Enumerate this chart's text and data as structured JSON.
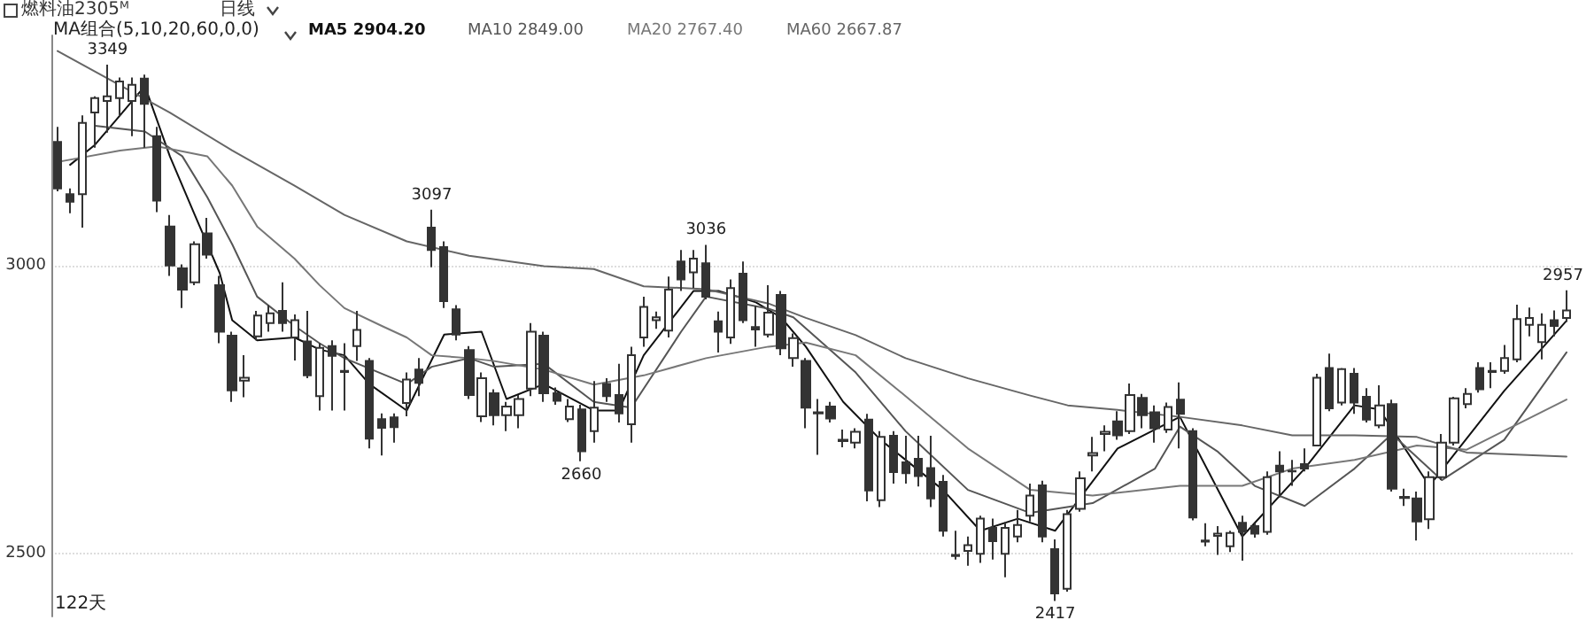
{
  "chart_data": {
    "type": "candlestick",
    "title": "燃料油2305ᴹ",
    "subtitle": "日线",
    "annotations": [
      "MA组合(5,10,20,60,0,0)",
      "122天",
      {
        "text": "3349",
        "y": 3349
      },
      {
        "text": "3097",
        "y": 3097
      },
      {
        "text": "2660",
        "y": 2660
      },
      {
        "text": "3036",
        "y": 3036
      },
      {
        "text": "2417",
        "y": 2417
      },
      {
        "text": "2957",
        "y": 2957
      }
    ],
    "categories": [
      null,
      null,
      null,
      null,
      null,
      null,
      null,
      null,
      null,
      null,
      null,
      null,
      null,
      null,
      null,
      null,
      null,
      null,
      null,
      null,
      null,
      null,
      null,
      null,
      null,
      null,
      null,
      null,
      null,
      null,
      null,
      null,
      null,
      null,
      null,
      null,
      null,
      null,
      null,
      null,
      null,
      null,
      null,
      null,
      null,
      null,
      null,
      null,
      null,
      null,
      null,
      null,
      null,
      null,
      null,
      null,
      null,
      null,
      null,
      null,
      null,
      null,
      null,
      null,
      null,
      null,
      null,
      null,
      null,
      null,
      null,
      null,
      null,
      null,
      null,
      null,
      null,
      null,
      null,
      null,
      null,
      null,
      null,
      null,
      null,
      null,
      null,
      null,
      null,
      null,
      null,
      null,
      null,
      null,
      null,
      null,
      null,
      null,
      null,
      null,
      null,
      null,
      null,
      null,
      null,
      null,
      null,
      null,
      null,
      null,
      null,
      null,
      null,
      null,
      null,
      null,
      null,
      null,
      null,
      null,
      null,
      null
    ],
    "series": [
      {
        "color": "#333333",
        "ohlc": [
          [
            3215,
            3241,
            3129,
            3134
          ],
          [
            3124,
            3134,
            3091,
            3111
          ],
          [
            3124,
            3261,
            3066,
            3248
          ],
          [
            3266,
            3294,
            3205,
            3291
          ],
          [
            3286,
            3349,
            3231,
            3294
          ],
          [
            3291,
            3327,
            3260,
            3320
          ],
          [
            3286,
            3327,
            3225,
            3314
          ],
          [
            3325,
            3332,
            3205,
            3281
          ],
          [
            3225,
            3241,
            3093,
            3113
          ],
          [
            3068,
            3088,
            2982,
            3000
          ],
          [
            2995,
            3002,
            2926,
            2958
          ],
          [
            2971,
            3042,
            2966,
            3037
          ],
          [
            3056,
            3083,
            3012,
            3019
          ],
          [
            2966,
            2982,
            2865,
            2885
          ],
          [
            2878,
            2885,
            2763,
            2783
          ],
          [
            2800,
            2844,
            2771,
            2805
          ],
          [
            2877,
            2921,
            2870,
            2913
          ],
          [
            2900,
            2931,
            2885,
            2917
          ],
          [
            2921,
            2971,
            2885,
            2900
          ],
          [
            2875,
            2915,
            2835,
            2905
          ],
          [
            2868,
            2921,
            2804,
            2809
          ],
          [
            2773,
            2865,
            2748,
            2857
          ],
          [
            2860,
            2870,
            2748,
            2843
          ],
          [
            2817,
            2865,
            2748,
            2815
          ],
          [
            2860,
            2921,
            2834,
            2888
          ],
          [
            2834,
            2839,
            2682,
            2699
          ],
          [
            2733,
            2743,
            2670,
            2718
          ],
          [
            2736,
            2743,
            2692,
            2719
          ],
          [
            2761,
            2814,
            2738,
            2802
          ],
          [
            2819,
            2839,
            2773,
            2796
          ],
          [
            3066,
            3097,
            2997,
            3027
          ],
          [
            3032,
            3042,
            2926,
            2938
          ],
          [
            2924,
            2931,
            2870,
            2880
          ],
          [
            2853,
            2860,
            2768,
            2775
          ],
          [
            2738,
            2814,
            2728,
            2804
          ],
          [
            2778,
            2785,
            2722,
            2740
          ],
          [
            2740,
            2763,
            2712,
            2755
          ],
          [
            2740,
            2775,
            2717,
            2768
          ],
          [
            2786,
            2900,
            2773,
            2885
          ],
          [
            2878,
            2885,
            2763,
            2778
          ],
          [
            2778,
            2788,
            2758,
            2765
          ],
          [
            2733,
            2768,
            2728,
            2755
          ],
          [
            2750,
            2758,
            2660,
            2677
          ],
          [
            2712,
            2799,
            2692,
            2753
          ],
          [
            2794,
            2804,
            2763,
            2773
          ],
          [
            2775,
            2829,
            2727,
            2743
          ],
          [
            2724,
            2859,
            2692,
            2844
          ],
          [
            2875,
            2946,
            2859,
            2928
          ],
          [
            2905,
            2920,
            2890,
            2910
          ],
          [
            2887,
            2981,
            2875,
            2958
          ],
          [
            3007,
            3027,
            2956,
            2976
          ],
          [
            2988,
            3027,
            2961,
            3012
          ],
          [
            3004,
            3036,
            2941,
            2946
          ],
          [
            2903,
            2920,
            2849,
            2885
          ],
          [
            2875,
            2976,
            2864,
            2961
          ],
          [
            2986,
            3007,
            2900,
            2905
          ],
          [
            2893,
            2930,
            2859,
            2889
          ],
          [
            2880,
            2966,
            2875,
            2918
          ],
          [
            2949,
            2956,
            2844,
            2856
          ],
          [
            2839,
            2882,
            2824,
            2874
          ],
          [
            2834,
            2839,
            2717,
            2753
          ],
          [
            2745,
            2768,
            2671,
            2743
          ],
          [
            2755,
            2763,
            2727,
            2734
          ],
          [
            2697,
            2715,
            2684,
            2695
          ],
          [
            2692,
            2717,
            2682,
            2711
          ],
          [
            2732,
            2742,
            2590,
            2609
          ],
          [
            2592,
            2712,
            2580,
            2702
          ],
          [
            2704,
            2712,
            2621,
            2641
          ],
          [
            2658,
            2704,
            2621,
            2639
          ],
          [
            2664,
            2704,
            2616,
            2634
          ],
          [
            2648,
            2704,
            2580,
            2595
          ],
          [
            2624,
            2636,
            2529,
            2539
          ],
          [
            2497,
            2539,
            2489,
            2495
          ],
          [
            2504,
            2529,
            2478,
            2514
          ],
          [
            2499,
            2565,
            2483,
            2560
          ],
          [
            2544,
            2560,
            2489,
            2521
          ],
          [
            2499,
            2554,
            2458,
            2544
          ],
          [
            2529,
            2575,
            2519,
            2549
          ],
          [
            2565,
            2621,
            2555,
            2600
          ],
          [
            2618,
            2626,
            2519,
            2529
          ],
          [
            2507,
            2524,
            2417,
            2430
          ],
          [
            2438,
            2575,
            2433,
            2568
          ],
          [
            2577,
            2642,
            2572,
            2630
          ],
          [
            2670,
            2702,
            2642,
            2674
          ],
          [
            2707,
            2722,
            2677,
            2711
          ],
          [
            2729,
            2747,
            2697,
            2705
          ],
          [
            2712,
            2795,
            2707,
            2775
          ],
          [
            2770,
            2777,
            2717,
            2740
          ],
          [
            2745,
            2757,
            2692,
            2717
          ],
          [
            2715,
            2762,
            2709,
            2754
          ],
          [
            2767,
            2797,
            2682,
            2742
          ],
          [
            2712,
            2717,
            2557,
            2562
          ],
          [
            2520,
            2552,
            2512,
            2522
          ],
          [
            2530,
            2547,
            2497,
            2534
          ],
          [
            2512,
            2539,
            2502,
            2535
          ],
          [
            2553,
            2565,
            2487,
            2537
          ],
          [
            2547,
            2552,
            2527,
            2534
          ],
          [
            2537,
            2642,
            2532,
            2632
          ],
          [
            2652,
            2677,
            2597,
            2642
          ],
          [
            2643,
            2662,
            2617,
            2642
          ],
          [
            2655,
            2682,
            2642,
            2647
          ],
          [
            2687,
            2812,
            2687,
            2805
          ],
          [
            2822,
            2847,
            2747,
            2752
          ],
          [
            2762,
            2822,
            2757,
            2820
          ],
          [
            2812,
            2822,
            2742,
            2762
          ],
          [
            2772,
            2787,
            2727,
            2732
          ],
          [
            2722,
            2792,
            2717,
            2757
          ],
          [
            2759,
            2767,
            2607,
            2612
          ],
          [
            2598,
            2612,
            2582,
            2596
          ],
          [
            2595,
            2607,
            2522,
            2555
          ],
          [
            2559,
            2642,
            2542,
            2632
          ],
          [
            2632,
            2707,
            2627,
            2692
          ],
          [
            2692,
            2772,
            2687,
            2769
          ],
          [
            2759,
            2787,
            2752,
            2777
          ],
          [
            2822,
            2832,
            2779,
            2785
          ],
          [
            2815,
            2832,
            2787,
            2817
          ],
          [
            2817,
            2862,
            2812,
            2839
          ],
          [
            2837,
            2932,
            2832,
            2907
          ],
          [
            2897,
            2927,
            2877,
            2909
          ],
          [
            2867,
            2917,
            2837,
            2897
          ],
          [
            2905,
            2922,
            2877,
            2895
          ],
          [
            2909,
            2957,
            2902,
            2922
          ]
        ]
      },
      {
        "type": "line",
        "name": "MA5 2904.20",
        "color": "#111111",
        "values": [
          null,
          3175,
          null,
          3210,
          null,
          3261,
          null,
          3312,
          null,
          3190,
          null,
          3088,
          null,
          2987,
          2905,
          null,
          2870,
          null,
          null,
          2875,
          null,
          2854,
          null,
          2844,
          null,
          2794,
          null,
          null,
          2748,
          null,
          null,
          2880,
          null,
          null,
          2885,
          null,
          2768,
          null,
          null,
          2794,
          null,
          null,
          null,
          2748,
          null,
          2748,
          null,
          2844,
          null,
          null,
          null,
          2956,
          null,
          2956,
          null,
          null,
          2936,
          null,
          2910,
          null,
          2859,
          null,
          null,
          2763,
          null,
          null,
          2697,
          null,
          null,
          null,
          null,
          2610,
          null,
          null,
          2539,
          null,
          null,
          2560,
          null,
          null,
          2539,
          null,
          null,
          null,
          null,
          2682,
          null,
          null,
          null,
          null,
          2737,
          null,
          null,
          null,
          null,
          2529,
          null,
          null,
          null,
          null,
          2647,
          null,
          null,
          null,
          2757,
          null,
          2750,
          null,
          null,
          null,
          2617,
          null,
          null,
          null,
          null,
          null,
          2782,
          null,
          null,
          null,
          null,
          2904
        ]
      },
      {
        "type": "line",
        "name": "MA10 2849.00",
        "color": "#555555",
        "values": [
          null,
          null,
          null,
          3243,
          null,
          null,
          null,
          3233,
          null,
          null,
          3190,
          null,
          3119,
          null,
          3037,
          null,
          2946,
          null,
          null,
          2895,
          null,
          2865,
          null,
          2839,
          null,
          null,
          null,
          null,
          2794,
          null,
          2824,
          null,
          null,
          2839,
          null,
          2824,
          null,
          null,
          null,
          2829,
          null,
          null,
          null,
          2763,
          null,
          null,
          2753,
          null,
          null,
          null,
          2885,
          null,
          2946,
          null,
          null,
          null,
          null,
          2925,
          null,
          2910,
          null,
          null,
          null,
          null,
          2814,
          null,
          null,
          null,
          2712,
          null,
          null,
          null,
          null,
          2610,
          null,
          null,
          null,
          null,
          2570,
          null,
          null,
          null,
          null,
          2587,
          null,
          null,
          null,
          null,
          2647,
          null,
          2720,
          null,
          null,
          2677,
          null,
          null,
          2617,
          null,
          null,
          null,
          2582,
          null,
          null,
          null,
          2647,
          null,
          null,
          2707,
          null,
          null,
          null,
          2627,
          null,
          null,
          null,
          null,
          2697,
          null,
          null,
          null,
          null,
          2849
        ]
      },
      {
        "type": "line",
        "name": "MA20 2767.40",
        "color": "#777777",
        "values": [
          3180,
          null,
          null,
          null,
          null,
          3200,
          null,
          null,
          3207,
          null,
          null,
          null,
          3190,
          null,
          3139,
          null,
          3068,
          null,
          null,
          3012,
          null,
          2966,
          null,
          2926,
          null,
          null,
          2895,
          null,
          2875,
          null,
          2844,
          null,
          null,
          2839,
          null,
          2834,
          null,
          null,
          null,
          2819,
          null,
          null,
          null,
          2793,
          null,
          null,
          null,
          2809,
          null,
          null,
          null,
          null,
          2839,
          null,
          null,
          null,
          null,
          2859,
          null,
          null,
          2866,
          null,
          null,
          null,
          2844,
          null,
          null,
          null,
          2773,
          null,
          null,
          null,
          null,
          2682,
          null,
          null,
          null,
          null,
          2610,
          null,
          null,
          null,
          null,
          2600,
          null,
          null,
          null,
          null,
          null,
          null,
          2617,
          null,
          null,
          null,
          null,
          2617,
          null,
          null,
          null,
          2647,
          null,
          null,
          null,
          null,
          2662,
          null,
          null,
          null,
          null,
          2687,
          null,
          null,
          null,
          2680,
          null,
          null,
          null,
          null,
          null,
          null,
          null,
          2767
        ]
      },
      {
        "type": "line",
        "name": "MA60 2667.87",
        "color": "#666666",
        "values": [
          3373,
          null,
          null,
          null,
          null,
          null,
          null,
          null,
          null,
          3266,
          null,
          null,
          null,
          null,
          3200,
          null,
          null,
          null,
          null,
          3139,
          null,
          null,
          null,
          3088,
          null,
          null,
          null,
          null,
          3042,
          null,
          null,
          null,
          null,
          3017,
          null,
          null,
          null,
          null,
          null,
          2999,
          null,
          null,
          null,
          2994,
          null,
          null,
          null,
          2964,
          null,
          null,
          null,
          null,
          2959,
          null,
          null,
          null,
          null,
          2934,
          null,
          null,
          2909,
          null,
          null,
          null,
          2879,
          null,
          null,
          null,
          2839,
          null,
          null,
          null,
          null,
          2804,
          null,
          null,
          null,
          null,
          2774,
          null,
          null,
          2757,
          null,
          null,
          null,
          2749,
          null,
          null,
          null,
          null,
          2737,
          null,
          null,
          null,
          null,
          2722,
          null,
          null,
          null,
          2705,
          null,
          null,
          null,
          null,
          2705,
          null,
          null,
          null,
          null,
          2702,
          null,
          null,
          null,
          2675,
          null,
          null,
          null,
          null,
          null,
          null,
          null,
          2668
        ]
      }
    ],
    "ylim": [
      2390,
      3400
    ],
    "yticks": [
      {
        "value": 2500,
        "label": "2500"
      },
      {
        "value": 3000,
        "label": "3000"
      }
    ],
    "grid": "y",
    "tick_labels": "y",
    "line_style": "solid"
  }
}
